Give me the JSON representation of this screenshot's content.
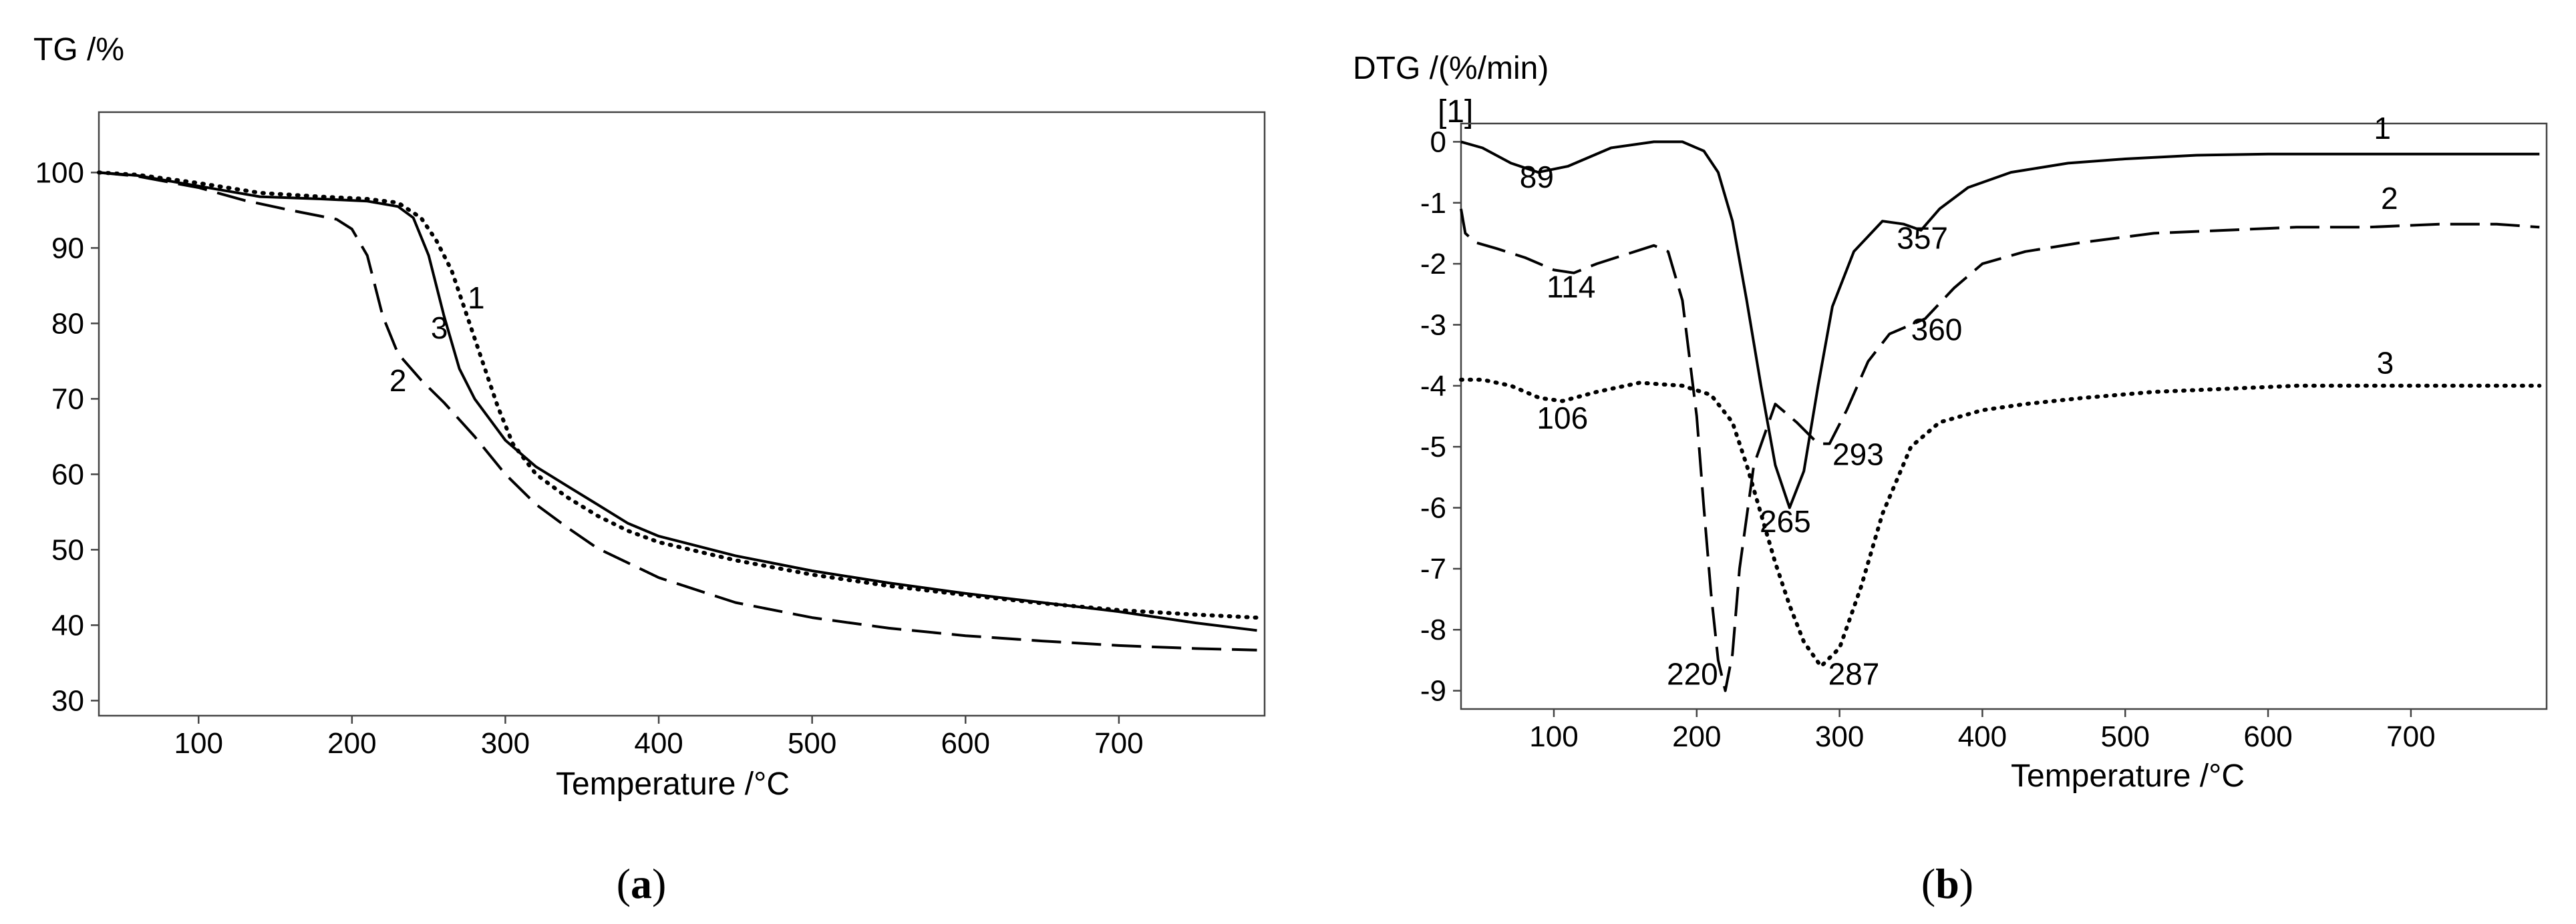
{
  "chart_data": [
    {
      "type": "line",
      "panel": "a",
      "caption_open": "(",
      "caption_letter": "a",
      "caption_close": ")",
      "title": "",
      "ylabel": "TG /%",
      "xlabel": "Temperature /°C",
      "xlim": [
        35,
        795
      ],
      "ylim": [
        28,
        108
      ],
      "xticks": [
        100,
        200,
        300,
        400,
        500,
        600,
        700
      ],
      "yticks": [
        30,
        40,
        50,
        60,
        70,
        80,
        90,
        100
      ],
      "grid": false,
      "series": [
        {
          "name": "1",
          "style": "dotted",
          "x": [
            35,
            60,
            100,
            140,
            180,
            210,
            230,
            245,
            255,
            265,
            275,
            285,
            295,
            305,
            320,
            340,
            360,
            380,
            400,
            450,
            500,
            550,
            600,
            650,
            700,
            750,
            790
          ],
          "y": [
            100,
            99.7,
            98.6,
            97.3,
            96.8,
            96.5,
            96,
            94,
            91,
            87,
            81,
            75,
            69,
            64,
            60,
            57,
            54.5,
            52.5,
            51,
            48.6,
            46.7,
            45.2,
            44,
            42.9,
            42,
            41.4,
            41
          ]
        },
        {
          "name": "2",
          "style": "dashed",
          "x": [
            35,
            60,
            100,
            130,
            160,
            190,
            200,
            210,
            220,
            230,
            245,
            260,
            280,
            300,
            320,
            340,
            360,
            400,
            450,
            500,
            550,
            600,
            650,
            700,
            750,
            790
          ],
          "y": [
            100,
            99.5,
            98,
            96.3,
            95,
            93.8,
            92.5,
            89,
            81,
            76,
            72.5,
            69.5,
            65,
            60,
            56,
            53,
            50.2,
            46.3,
            43,
            41,
            39.6,
            38.6,
            37.9,
            37.3,
            36.9,
            36.7
          ]
        },
        {
          "name": "3",
          "style": "solid",
          "x": [
            35,
            60,
            100,
            140,
            180,
            210,
            230,
            240,
            250,
            260,
            270,
            280,
            300,
            320,
            340,
            360,
            380,
            400,
            450,
            500,
            550,
            600,
            650,
            700,
            750,
            790
          ],
          "y": [
            100,
            99.6,
            98.2,
            96.8,
            96.5,
            96.2,
            95.5,
            94,
            89,
            81,
            74,
            70,
            64.5,
            61,
            58.5,
            56,
            53.5,
            51.8,
            49.2,
            47.2,
            45.6,
            44.2,
            43,
            41.8,
            40.3,
            39.3
          ]
        }
      ],
      "annotations": [
        {
          "text": "1",
          "x": 281,
          "y": 82
        },
        {
          "text": "3",
          "x": 257,
          "y": 78
        },
        {
          "text": "2",
          "x": 230,
          "y": 71
        }
      ]
    },
    {
      "type": "line",
      "panel": "b",
      "caption_open": "(",
      "caption_letter": "b",
      "caption_close": ")",
      "title": "",
      "ylabel": "DTG /(%/min)",
      "sublabel": "[1]",
      "xlabel": "Temperature /°C",
      "xlim": [
        35,
        795
      ],
      "ylim": [
        -9.3,
        0.3
      ],
      "xticks": [
        100,
        200,
        300,
        400,
        500,
        600,
        700
      ],
      "yticks": [
        0,
        -1,
        -2,
        -3,
        -4,
        -5,
        -6,
        -7,
        -8,
        -9
      ],
      "grid": false,
      "series": [
        {
          "name": "1",
          "style": "solid",
          "x": [
            35,
            50,
            70,
            89,
            110,
            140,
            170,
            190,
            205,
            215,
            225,
            235,
            245,
            255,
            265,
            275,
            285,
            295,
            310,
            330,
            345,
            357,
            370,
            390,
            420,
            460,
            500,
            550,
            600,
            650,
            700,
            750,
            790
          ],
          "y": [
            0,
            -0.1,
            -0.35,
            -0.5,
            -0.4,
            -0.1,
            0,
            0,
            -0.15,
            -0.5,
            -1.3,
            -2.6,
            -4,
            -5.3,
            -6,
            -5.4,
            -4,
            -2.7,
            -1.8,
            -1.3,
            -1.35,
            -1.45,
            -1.1,
            -0.75,
            -0.5,
            -0.35,
            -0.28,
            -0.22,
            -0.2,
            -0.2,
            -0.2,
            -0.2,
            -0.2
          ]
        },
        {
          "name": "2",
          "style": "dashed",
          "x": [
            35,
            38,
            45,
            60,
            80,
            100,
            114,
            130,
            150,
            170,
            180,
            190,
            200,
            205,
            210,
            215,
            220,
            225,
            230,
            240,
            255,
            270,
            285,
            293,
            305,
            320,
            335,
            360,
            380,
            400,
            430,
            470,
            520,
            570,
            620,
            670,
            720,
            760,
            790
          ],
          "y": [
            -1.1,
            -1.5,
            -1.65,
            -1.75,
            -1.9,
            -2.1,
            -2.15,
            -2,
            -1.85,
            -1.7,
            -1.8,
            -2.6,
            -4.5,
            -6,
            -7.4,
            -8.5,
            -9,
            -8.4,
            -7,
            -5.3,
            -4.3,
            -4.6,
            -4.95,
            -4.95,
            -4.4,
            -3.6,
            -3.15,
            -2.9,
            -2.4,
            -2,
            -1.8,
            -1.65,
            -1.5,
            -1.45,
            -1.4,
            -1.4,
            -1.35,
            -1.35,
            -1.4
          ]
        },
        {
          "name": "3",
          "style": "dotted",
          "x": [
            35,
            50,
            70,
            90,
            106,
            130,
            160,
            190,
            210,
            225,
            235,
            245,
            255,
            265,
            275,
            287,
            300,
            315,
            330,
            350,
            370,
            400,
            430,
            470,
            520,
            570,
            620,
            670,
            720,
            760,
            790
          ],
          "y": [
            -3.9,
            -3.9,
            -4,
            -4.2,
            -4.25,
            -4.1,
            -3.95,
            -4,
            -4.15,
            -4.6,
            -5.3,
            -6.1,
            -6.9,
            -7.6,
            -8.2,
            -8.6,
            -8.3,
            -7.3,
            -6.1,
            -5,
            -4.6,
            -4.4,
            -4.3,
            -4.2,
            -4.1,
            -4.05,
            -4,
            -4,
            -4,
            -4,
            -4
          ]
        }
      ],
      "annotations": [
        {
          "text": "1",
          "x": 680,
          "y": 0.05
        },
        {
          "text": "89",
          "x": 88,
          "y": -0.75
        },
        {
          "text": "357",
          "x": 358,
          "y": -1.75
        },
        {
          "text": "2",
          "x": 685,
          "y": -1.1
        },
        {
          "text": "114",
          "x": 112,
          "y": -2.55
        },
        {
          "text": "360",
          "x": 368,
          "y": -3.25
        },
        {
          "text": "3",
          "x": 682,
          "y": -3.8
        },
        {
          "text": "106",
          "x": 106,
          "y": -4.7
        },
        {
          "text": "293",
          "x": 313,
          "y": -5.3
        },
        {
          "text": "265",
          "x": 262,
          "y": -6.4
        },
        {
          "text": "220",
          "x": 197,
          "y": -8.9
        },
        {
          "text": "287",
          "x": 310,
          "y": -8.9
        }
      ]
    }
  ]
}
